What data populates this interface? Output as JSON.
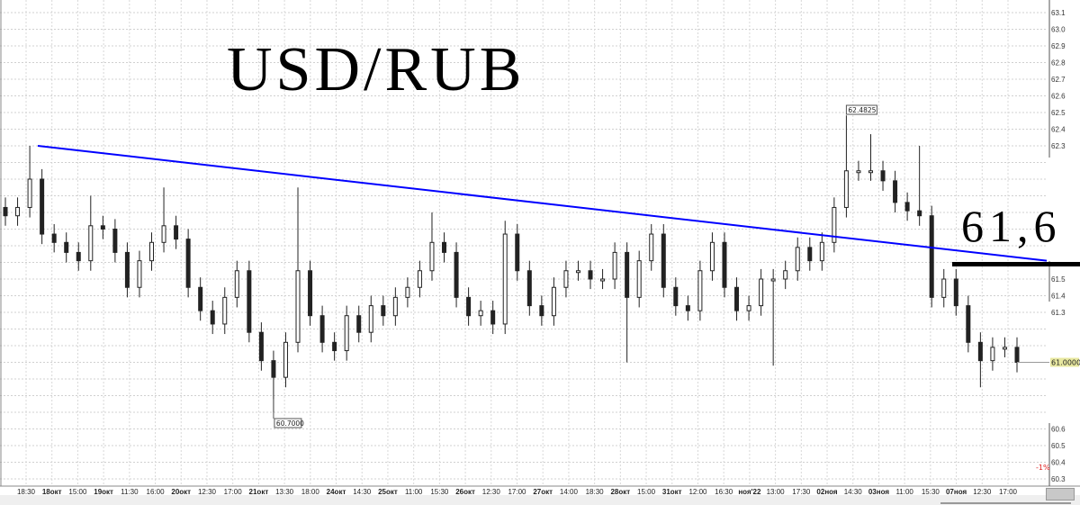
{
  "chart_data": {
    "type": "candlestick",
    "title": "USD/RUB",
    "level_label": "61,6",
    "level_value": 61.6,
    "ylim": [
      60.3,
      63.15
    ],
    "y_ticks": [
      "63.1",
      "63.0",
      "62.9",
      "62.8",
      "62.7",
      "62.6",
      "62.5",
      "62.4",
      "62.3",
      "61.5",
      "61.4",
      "61.3",
      "60.6",
      "60.5",
      "60.4",
      "60.3"
    ],
    "x_ticks": [
      "18:30",
      "18окт",
      "15:00",
      "19окт",
      "11:30",
      "16:00",
      "20окт",
      "12:30",
      "17:00",
      "21окт",
      "13:30",
      "18:00",
      "24окт",
      "14:30",
      "25окт",
      "11:00",
      "15:30",
      "26окт",
      "12:30",
      "17:00",
      "27окт",
      "14:00",
      "18:30",
      "28окт",
      "15:00",
      "31окт",
      "12:00",
      "16:30",
      "ноя'22",
      "13:00",
      "17:30",
      "02ноя",
      "14:30",
      "03ноя",
      "11:00",
      "15:30",
      "07ноя",
      "12:30",
      "17:00"
    ],
    "bold_x_ticks": [
      "18окт",
      "19окт",
      "20окт",
      "21окт",
      "24окт",
      "25окт",
      "26окт",
      "27окт",
      "28окт",
      "31окт",
      "ноя'22",
      "02ноя",
      "03ноя",
      "07ноя"
    ],
    "close": [
      61.88,
      61.93,
      62.1,
      61.77,
      61.72,
      61.66,
      61.61,
      61.82,
      61.8,
      61.66,
      61.45,
      61.61,
      61.72,
      61.82,
      61.74,
      61.45,
      61.31,
      61.23,
      61.39,
      61.55,
      61.18,
      61.01,
      60.91,
      61.12,
      61.55,
      61.28,
      61.12,
      61.07,
      61.28,
      61.18,
      61.34,
      61.28,
      61.39,
      61.45,
      61.55,
      61.72,
      61.66,
      61.39,
      61.28,
      61.31,
      61.23,
      61.77,
      61.55,
      61.34,
      61.28,
      61.45,
      61.55,
      61.55,
      61.5,
      61.5,
      61.66,
      61.39,
      61.61,
      61.77,
      61.45,
      61.34,
      61.31,
      61.55,
      61.72,
      61.45,
      61.31,
      61.34,
      61.5,
      61.5,
      61.55,
      61.69,
      61.61,
      61.72,
      61.93,
      62.15,
      62.15,
      62.15,
      62.09,
      61.96,
      61.91,
      61.88,
      61.39,
      61.5,
      61.34,
      61.12,
      61.01,
      61.09,
      61.09,
      61.0
    ],
    "wick_extremes": [
      {
        "i": 2,
        "high": 62.3
      },
      {
        "i": 7,
        "high": 62.0
      },
      {
        "i": 13,
        "high": 62.05
      },
      {
        "i": 22,
        "low": 60.7
      },
      {
        "i": 24,
        "high": 62.05
      },
      {
        "i": 35,
        "high": 61.9
      },
      {
        "i": 41,
        "high": 61.85
      },
      {
        "i": 51,
        "low": 61.0
      },
      {
        "i": 63,
        "low": 60.98
      },
      {
        "i": 69,
        "high": 62.4825
      },
      {
        "i": 71,
        "high": 62.37
      },
      {
        "i": 75,
        "high": 62.3
      },
      {
        "i": 80,
        "low": 60.85
      }
    ],
    "max_label": "62.4825",
    "min_label": "60.7000",
    "last_price_label": "61.0000",
    "last_price": 61.0,
    "percent_label": "-1%",
    "trendline": {
      "from": 62.3,
      "to": 61.61,
      "color": "#0000ff"
    },
    "grid": true,
    "colors": {
      "candle": "#000000",
      "trendline": "#0000ff",
      "level": "#000000",
      "last_price_bg": "#e8e8a0",
      "percent": "#e02020"
    }
  }
}
